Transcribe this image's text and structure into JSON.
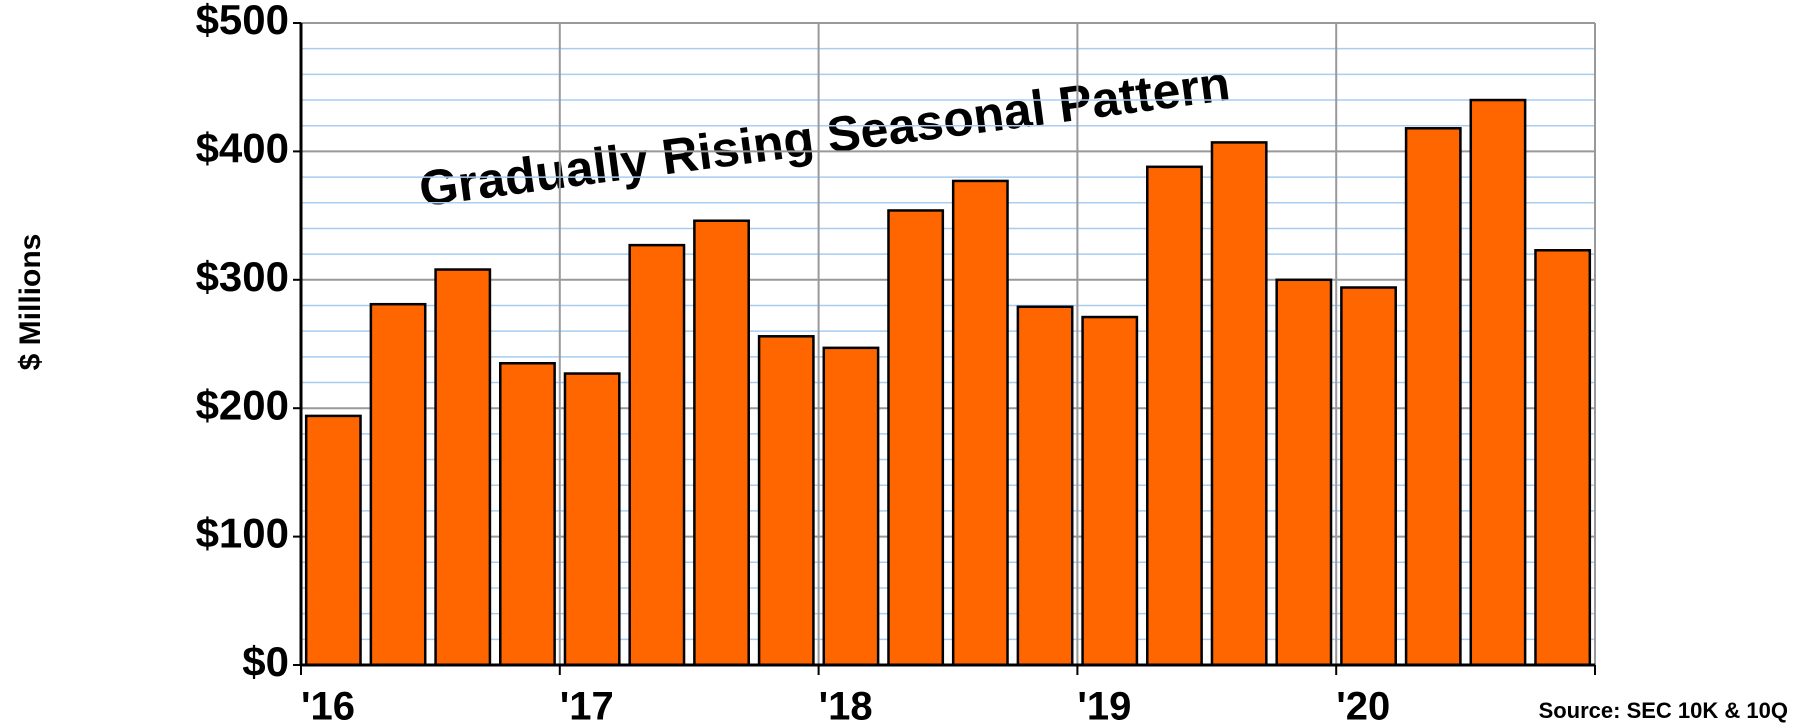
{
  "chart_data": {
    "type": "bar",
    "y_axis_label": "$ Millions",
    "annotation": "Gradually Rising Seasonal Pattern",
    "source": "Source: SEC 10K & 10Q",
    "categories": [
      "'16",
      null,
      null,
      null,
      "'17",
      null,
      null,
      null,
      "'18",
      null,
      null,
      null,
      "'19",
      null,
      null,
      null,
      "'20",
      null,
      null,
      null
    ],
    "values": [
      194,
      281,
      308,
      235,
      227,
      327,
      346,
      256,
      247,
      354,
      377,
      279,
      271,
      388,
      407,
      300,
      294,
      418,
      440,
      323
    ],
    "color": "#ff6600",
    "ylim": [
      0,
      500
    ],
    "yticks": [
      {
        "value": 0,
        "label": "$0"
      },
      {
        "value": 100,
        "label": "$100"
      },
      {
        "value": 200,
        "label": "$200"
      },
      {
        "value": 300,
        "label": "$300"
      },
      {
        "value": 400,
        "label": "$400"
      },
      {
        "value": 500,
        "label": "$500"
      }
    ],
    "minor_yticks": [
      20,
      40,
      60,
      80,
      120,
      140,
      160,
      180,
      220,
      240,
      260,
      280,
      320,
      340,
      360,
      380,
      420,
      440,
      460,
      480
    ],
    "grid": true
  }
}
